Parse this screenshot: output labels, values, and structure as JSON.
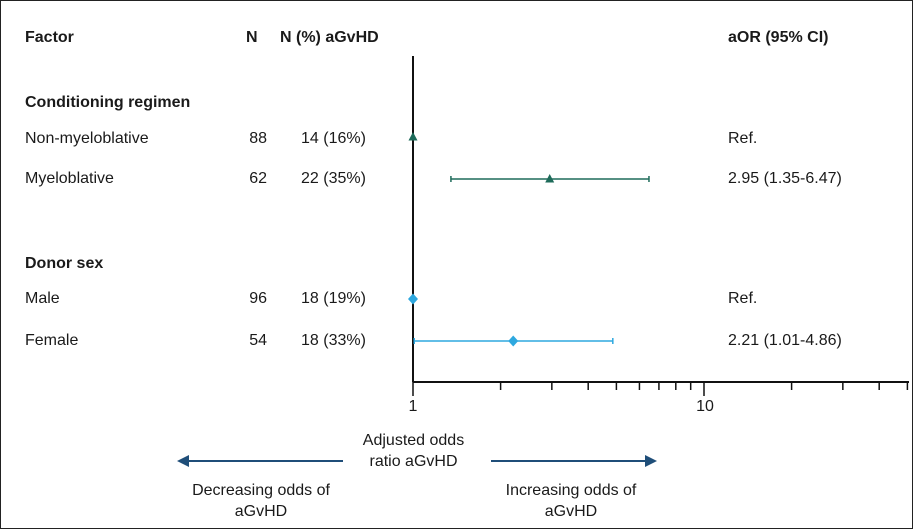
{
  "headers": {
    "factor": "Factor",
    "n": "N",
    "n_pct": "N (%) aGvHD",
    "aor": "aOR (95% CI)"
  },
  "groups": [
    {
      "title": "Conditioning regimen",
      "rows": [
        {
          "label": "Non-myeloblative",
          "n": "88",
          "n_pct": "14 (16%)",
          "aor_text": "Ref."
        },
        {
          "label": "Myeloblative",
          "n": "62",
          "n_pct": "22 (35%)",
          "aor_text": "2.95 (1.35-6.47)"
        }
      ]
    },
    {
      "title": "Donor sex",
      "rows": [
        {
          "label": "Male",
          "n": "96",
          "n_pct": "18 (19%)",
          "aor_text": "Ref."
        },
        {
          "label": "Female",
          "n": "54",
          "n_pct": "18 (33%)",
          "aor_text": "2.21 (1.01-4.86)"
        }
      ]
    }
  ],
  "axis": {
    "label": "Adjusted odds ratio aGvHD",
    "ticks": [
      "1",
      "10"
    ]
  },
  "arrows": {
    "left": "Decreasing odds of aGvHD",
    "right": "Increasing odds of aGvHD",
    "color": "#1f4e79"
  },
  "chart_data": {
    "type": "forest",
    "scale": "log",
    "xlim": [
      1,
      50
    ],
    "ref_line": 1,
    "series": [
      {
        "color": "#1e6b5a",
        "marker": "triangle",
        "points": [
          {
            "label": "Non-myeloblative",
            "est": 1,
            "lo": 1,
            "hi": 1
          },
          {
            "label": "Myeloblative",
            "est": 2.95,
            "lo": 1.35,
            "hi": 6.47
          }
        ]
      },
      {
        "color": "#2ea8df",
        "marker": "diamond",
        "points": [
          {
            "label": "Male",
            "est": 1,
            "lo": 1,
            "hi": 1
          },
          {
            "label": "Female",
            "est": 2.21,
            "lo": 1.01,
            "hi": 4.86
          }
        ]
      }
    ]
  }
}
